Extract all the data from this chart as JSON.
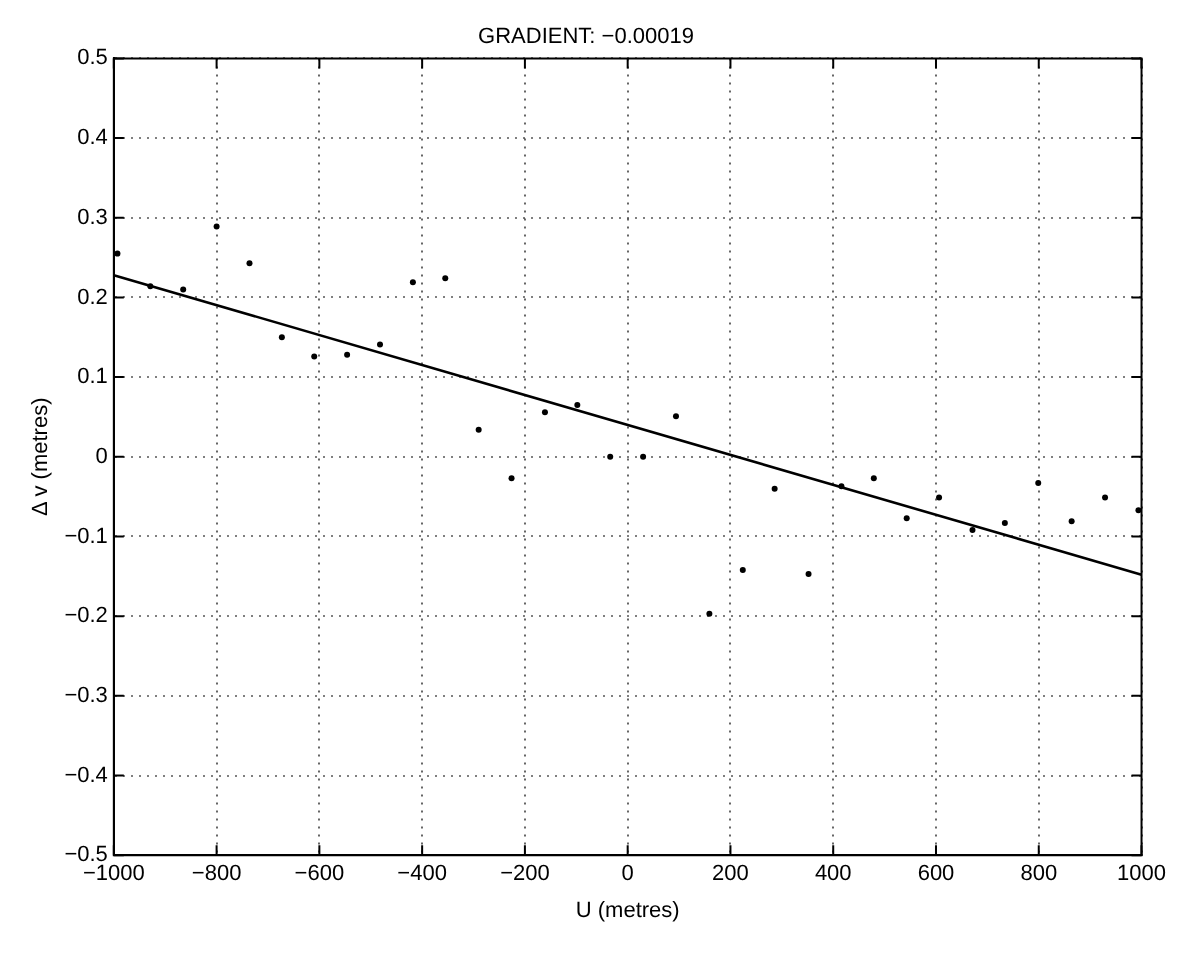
{
  "chart_data": {
    "type": "scatter",
    "title": "GRADIENT: −0.00019",
    "xlabel": "U (metres)",
    "ylabel": "Δ v (metres)",
    "series": [
      {
        "color": "#000000",
        "marker": "circle",
        "x": [
          -993,
          -929,
          -865,
          -800,
          -736,
          -673,
          -610,
          -546,
          -482,
          -418,
          -355,
          -290,
          -226,
          -161,
          -98,
          -34,
          30,
          94,
          159,
          224,
          286,
          352,
          416,
          479,
          543,
          606,
          671,
          734,
          799,
          864,
          929,
          994
        ],
        "values": [
          0.255,
          0.214,
          0.21,
          0.289,
          0.243,
          0.15,
          0.126,
          0.128,
          0.141,
          0.219,
          0.224,
          0.034,
          -0.027,
          0.056,
          0.065,
          0,
          0,
          0.051,
          -0.197,
          -0.142,
          -0.04,
          -0.147,
          -0.037,
          -0.027,
          -0.077,
          -0.051,
          -0.092,
          -0.083,
          -0.033,
          -0.081,
          -0.051,
          -0.067
        ]
      },
      {
        "type": "line",
        "color": "#000000",
        "marker": "none",
        "line_style": "solid",
        "x": [
          -1000,
          1000
        ],
        "values": [
          0.228,
          -0.148
        ]
      }
    ],
    "xlim": [
      -1000,
      1000
    ],
    "ylim": [
      -0.5,
      0.5
    ],
    "xticks": [
      {
        "value": -1000,
        "label": "−1000"
      },
      {
        "value": -800,
        "label": "−800"
      },
      {
        "value": -600,
        "label": "−600"
      },
      {
        "value": -400,
        "label": "−400"
      },
      {
        "value": -200,
        "label": "−200"
      },
      0,
      200,
      400,
      600,
      800,
      1000
    ],
    "yticks": [
      {
        "value": -0.5,
        "label": "−0.5"
      },
      {
        "value": -0.4,
        "label": "−0.4"
      },
      {
        "value": -0.3,
        "label": "−0.3"
      },
      {
        "value": -0.2,
        "label": "−0.2"
      },
      {
        "value": -0.1,
        "label": "−0.1"
      },
      0,
      0.1,
      0.2,
      0.3,
      0.4,
      0.5
    ],
    "grid": true,
    "legend": false
  }
}
